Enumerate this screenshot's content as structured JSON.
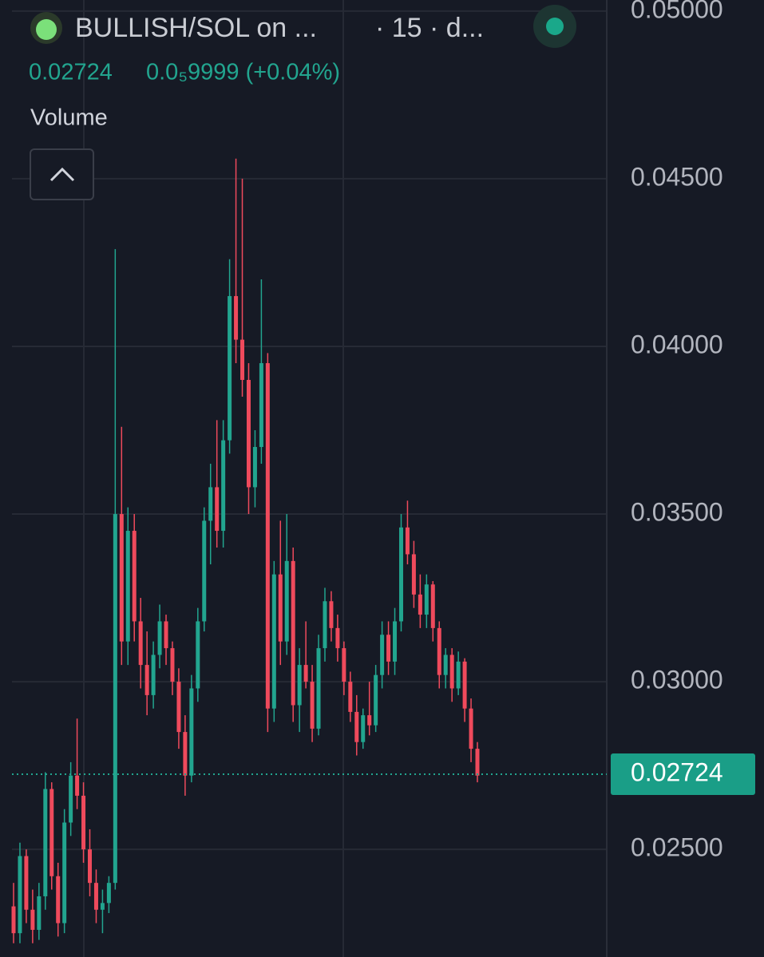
{
  "header": {
    "symbol": "BULLISH/SOL on ...",
    "interval": "· 15 · d...",
    "change": "0.0₅9999 (+0.04%)",
    "indicator": "Volume"
  },
  "chart_data": {
    "type": "candlestick",
    "up_color": "#22a58f",
    "down_color": "#ef4a5c",
    "ylim": [
      0.02179,
      0.05033
    ],
    "yticks": [
      {
        "value": 0.05,
        "label": "0.05000"
      },
      {
        "value": 0.045,
        "label": "0.04500"
      },
      {
        "value": 0.04,
        "label": "0.04000"
      },
      {
        "value": 0.035,
        "label": "0.03500"
      },
      {
        "value": 0.03,
        "label": "0.03000"
      },
      {
        "value": 0.025,
        "label": "0.02500"
      }
    ],
    "grid": true,
    "current_price": 0.02724,
    "ohlc": [
      [
        0.0233,
        0.024,
        0.0222,
        0.0225
      ],
      [
        0.0225,
        0.0252,
        0.0222,
        0.0248
      ],
      [
        0.0248,
        0.025,
        0.0228,
        0.0232
      ],
      [
        0.0232,
        0.0238,
        0.0222,
        0.0226
      ],
      [
        0.0226,
        0.024,
        0.0223,
        0.0236
      ],
      [
        0.0236,
        0.0273,
        0.0232,
        0.0268
      ],
      [
        0.0268,
        0.027,
        0.0238,
        0.0242
      ],
      [
        0.0242,
        0.0246,
        0.0224,
        0.0228
      ],
      [
        0.0228,
        0.0262,
        0.0225,
        0.0258
      ],
      [
        0.0258,
        0.0276,
        0.0254,
        0.0272
      ],
      [
        0.0272,
        0.0289,
        0.0262,
        0.0266
      ],
      [
        0.0266,
        0.027,
        0.0246,
        0.025
      ],
      [
        0.025,
        0.0256,
        0.0236,
        0.024
      ],
      [
        0.024,
        0.0244,
        0.0228,
        0.0232
      ],
      [
        0.0232,
        0.0238,
        0.0225,
        0.0234
      ],
      [
        0.0234,
        0.0242,
        0.0231,
        0.024
      ],
      [
        0.024,
        0.0429,
        0.0238,
        0.035
      ],
      [
        0.035,
        0.0376,
        0.0305,
        0.0312
      ],
      [
        0.0312,
        0.0352,
        0.0305,
        0.0345
      ],
      [
        0.0345,
        0.035,
        0.0312,
        0.0318
      ],
      [
        0.0318,
        0.0325,
        0.0298,
        0.0305
      ],
      [
        0.0305,
        0.0315,
        0.029,
        0.0296
      ],
      [
        0.0296,
        0.0312,
        0.0292,
        0.0308
      ],
      [
        0.0308,
        0.0323,
        0.0304,
        0.0318
      ],
      [
        0.0318,
        0.032,
        0.0305,
        0.031
      ],
      [
        0.031,
        0.0312,
        0.0296,
        0.03
      ],
      [
        0.03,
        0.0304,
        0.028,
        0.0285
      ],
      [
        0.0285,
        0.029,
        0.0266,
        0.0272
      ],
      [
        0.0272,
        0.0302,
        0.027,
        0.0298
      ],
      [
        0.0298,
        0.0322,
        0.0294,
        0.0318
      ],
      [
        0.0318,
        0.0352,
        0.0315,
        0.0348
      ],
      [
        0.0348,
        0.0365,
        0.0335,
        0.0358
      ],
      [
        0.0358,
        0.0378,
        0.034,
        0.0345
      ],
      [
        0.0345,
        0.0378,
        0.034,
        0.0372
      ],
      [
        0.0372,
        0.0426,
        0.0368,
        0.0415
      ],
      [
        0.0415,
        0.0456,
        0.0395,
        0.0402
      ],
      [
        0.0402,
        0.045,
        0.0385,
        0.039
      ],
      [
        0.039,
        0.0395,
        0.035,
        0.0358
      ],
      [
        0.0358,
        0.0375,
        0.0352,
        0.037
      ],
      [
        0.037,
        0.042,
        0.0365,
        0.0395
      ],
      [
        0.0395,
        0.0398,
        0.0285,
        0.0292
      ],
      [
        0.0292,
        0.0336,
        0.0288,
        0.0332
      ],
      [
        0.0332,
        0.0348,
        0.0305,
        0.0312
      ],
      [
        0.0312,
        0.035,
        0.0308,
        0.0336
      ],
      [
        0.0336,
        0.034,
        0.0288,
        0.0293
      ],
      [
        0.0293,
        0.031,
        0.0285,
        0.0305
      ],
      [
        0.0305,
        0.0318,
        0.0298,
        0.03
      ],
      [
        0.03,
        0.0305,
        0.0282,
        0.0286
      ],
      [
        0.0286,
        0.0314,
        0.0284,
        0.031
      ],
      [
        0.031,
        0.0328,
        0.0306,
        0.0324
      ],
      [
        0.0324,
        0.0327,
        0.0312,
        0.0316
      ],
      [
        0.0316,
        0.032,
        0.0306,
        0.031
      ],
      [
        0.031,
        0.0312,
        0.0296,
        0.03
      ],
      [
        0.03,
        0.0303,
        0.0288,
        0.0291
      ],
      [
        0.0291,
        0.0296,
        0.0278,
        0.0282
      ],
      [
        0.0282,
        0.0292,
        0.028,
        0.029
      ],
      [
        0.029,
        0.03,
        0.0284,
        0.0287
      ],
      [
        0.0287,
        0.0305,
        0.0285,
        0.0302
      ],
      [
        0.0302,
        0.0318,
        0.0298,
        0.0314
      ],
      [
        0.0314,
        0.0318,
        0.0302,
        0.0306
      ],
      [
        0.0306,
        0.0322,
        0.0302,
        0.0318
      ],
      [
        0.0318,
        0.035,
        0.0315,
        0.0346
      ],
      [
        0.0346,
        0.0354,
        0.0335,
        0.0338
      ],
      [
        0.0338,
        0.0342,
        0.0322,
        0.0326
      ],
      [
        0.0326,
        0.0332,
        0.0316,
        0.032
      ],
      [
        0.032,
        0.0332,
        0.0316,
        0.0329
      ],
      [
        0.0329,
        0.033,
        0.0312,
        0.0316
      ],
      [
        0.0316,
        0.0318,
        0.0298,
        0.0302
      ],
      [
        0.0302,
        0.031,
        0.0298,
        0.0308
      ],
      [
        0.0308,
        0.031,
        0.0294,
        0.0298
      ],
      [
        0.0298,
        0.0309,
        0.0296,
        0.0306
      ],
      [
        0.0306,
        0.0307,
        0.0288,
        0.0292
      ],
      [
        0.0292,
        0.0295,
        0.0276,
        0.028
      ],
      [
        0.028,
        0.0282,
        0.027,
        0.0272
      ]
    ]
  }
}
